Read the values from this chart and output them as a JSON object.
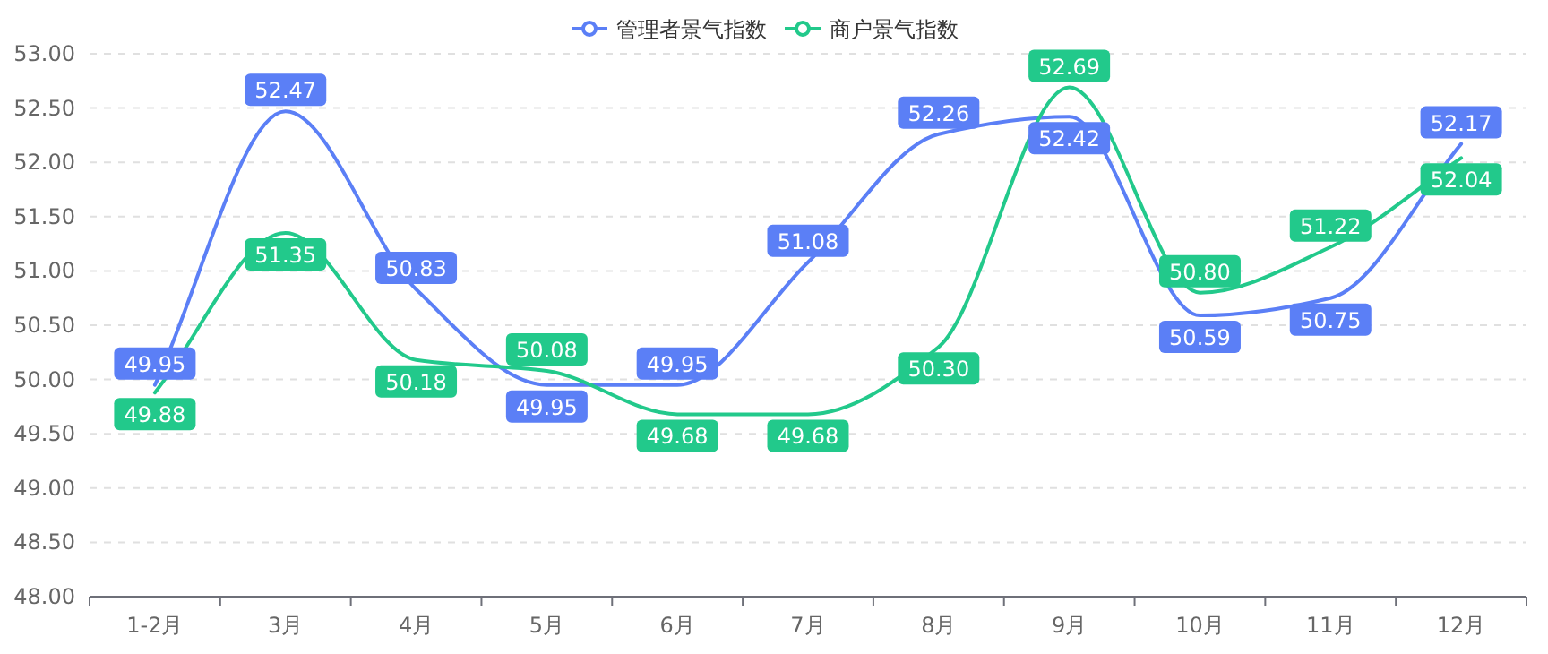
{
  "chart_data": {
    "type": "line",
    "categories": [
      "1-2月",
      "3月",
      "4月",
      "5月",
      "6月",
      "7月",
      "8月",
      "9月",
      "10月",
      "11月",
      "12月"
    ],
    "series": [
      {
        "name": "管理者景气指数",
        "color": "#5b7ff6",
        "values": [
          49.95,
          52.47,
          50.83,
          49.95,
          49.95,
          51.08,
          52.26,
          52.42,
          50.59,
          50.75,
          52.17
        ],
        "value_labels": [
          "49.95",
          "52.47",
          "50.83",
          "49.95",
          "49.95",
          "51.08",
          "52.26",
          "52.42",
          "50.59",
          "50.75",
          "52.17"
        ]
      },
      {
        "name": "商户景气指数",
        "color": "#22c98b",
        "values": [
          49.88,
          51.35,
          50.18,
          50.08,
          49.68,
          49.68,
          50.3,
          52.69,
          50.8,
          51.22,
          52.04
        ],
        "value_labels": [
          "49.88",
          "51.35",
          "50.18",
          "50.08",
          "49.68",
          "49.68",
          "50.30",
          "52.69",
          "50.80",
          "51.22",
          "52.04"
        ]
      }
    ],
    "ylim": [
      48,
      53
    ],
    "yticks": [
      {
        "value": 48,
        "label": "48.00"
      },
      {
        "value": 48.5,
        "label": "48.50"
      },
      {
        "value": 49,
        "label": "49.00"
      },
      {
        "value": 49.5,
        "label": "49.50"
      },
      {
        "value": 50,
        "label": "50.00"
      },
      {
        "value": 50.5,
        "label": "50.50"
      },
      {
        "value": 51,
        "label": "51.00"
      },
      {
        "value": 51.5,
        "label": "51.50"
      },
      {
        "value": 52,
        "label": "52.00"
      },
      {
        "value": 52.5,
        "label": "52.50"
      },
      {
        "value": 53,
        "label": "53.00"
      }
    ],
    "grid": "y",
    "legend": "top",
    "marker": "none",
    "line_style": "solid"
  }
}
